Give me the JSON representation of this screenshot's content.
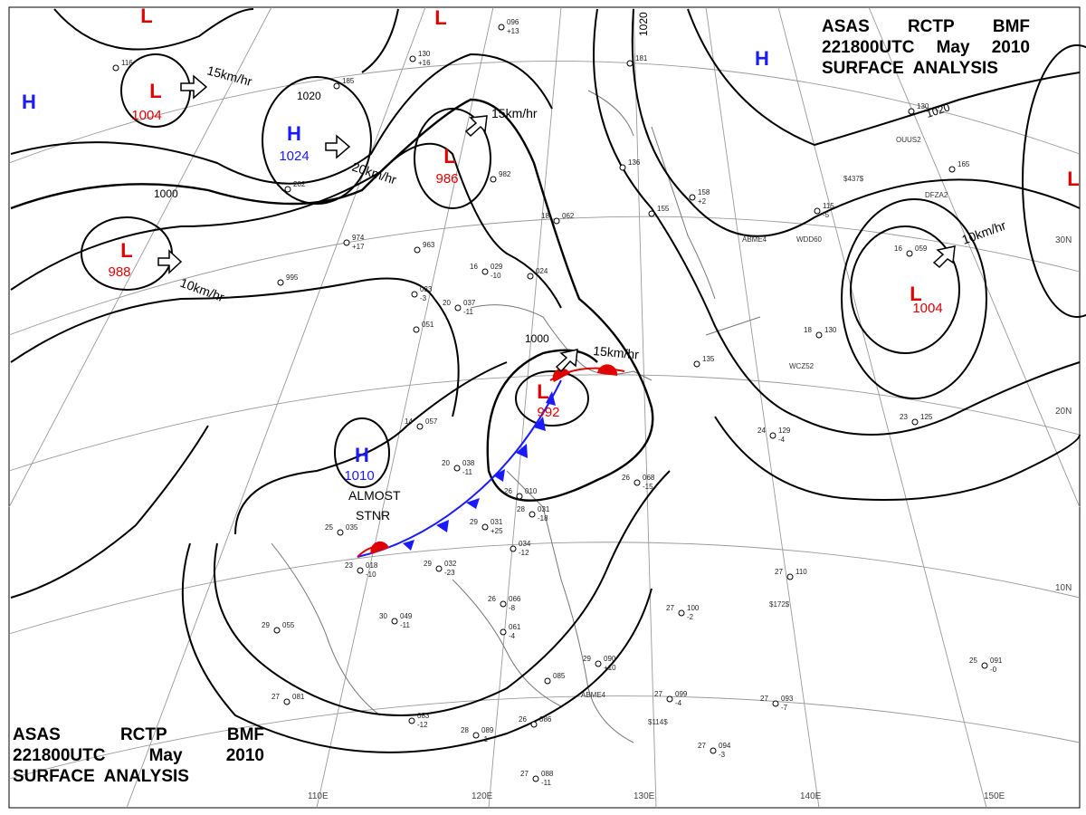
{
  "header_top": {
    "line1": [
      "ASAS",
      "RCTP",
      "BMF"
    ],
    "line2": [
      "221800UTC",
      "May",
      "2010"
    ],
    "line3": "SURFACE  ANALYSIS"
  },
  "header_bottom": {
    "line1": [
      "ASAS",
      "RCTP",
      "BMF"
    ],
    "line2": [
      "221800UTC",
      "May",
      "2010"
    ],
    "line3": "SURFACE  ANALYSIS"
  },
  "colors": {
    "high": "#1a1aff",
    "low": "#e00000",
    "isobar": "#000000",
    "grid": "#888888",
    "coast": "#666666",
    "cold_front": "#1a1aff",
    "warm_front": "#e00000"
  },
  "pressure_centers": [
    {
      "type": "H",
      "value": "1024"
    },
    {
      "type": "L",
      "value": "1004"
    },
    {
      "type": "L",
      "value": "988"
    },
    {
      "type": "L",
      "value": "986"
    },
    {
      "type": "H",
      "value": "1010"
    },
    {
      "type": "L",
      "value": "992"
    },
    {
      "type": "L",
      "value": "1004"
    },
    {
      "type": "H",
      "value": ""
    },
    {
      "type": "H",
      "value": ""
    },
    {
      "type": "L",
      "value": ""
    },
    {
      "type": "L",
      "value": ""
    },
    {
      "type": "L",
      "value": ""
    }
  ],
  "isobar_labels": [
    "1020",
    "1000",
    "1000",
    "1020",
    "1020"
  ],
  "motion_labels": [
    "15km/hr",
    "15km/hr",
    "20km/hr",
    "10km/hr",
    "15km/hr",
    "10km/hr"
  ],
  "front_label": [
    "ALMOST",
    "STNR"
  ],
  "longitude_labels": [
    "110E",
    "120E",
    "130E",
    "140E",
    "150E"
  ],
  "latitude_labels": [
    "30N",
    "20N",
    "10N"
  ],
  "station_plots": [
    {
      "t": "116",
      "p": "",
      "x": ""
    },
    {
      "t": "130",
      "p": "+16",
      "x": ""
    },
    {
      "t": "185",
      "p": "",
      "x": ""
    },
    {
      "t": "096",
      "p": "+13",
      "x": ""
    },
    {
      "t": "181",
      "p": "",
      "x": ""
    },
    {
      "t": "136",
      "p": "",
      "x": ""
    },
    {
      "t": "202",
      "p": "",
      "x": ""
    },
    {
      "t": "982",
      "p": "",
      "x": ""
    },
    {
      "t": "974",
      "p": "+17",
      "x": ""
    },
    {
      "t": "963",
      "p": "",
      "x": ""
    },
    {
      "t": "995",
      "p": "",
      "x": ""
    },
    {
      "t": "029",
      "p": "-10",
      "x": "16"
    },
    {
      "t": "024",
      "p": "",
      "x": ""
    },
    {
      "t": "033",
      "p": "-3",
      "x": ""
    },
    {
      "t": "037",
      "p": "-11",
      "x": "20"
    },
    {
      "t": "051",
      "p": "",
      "x": ""
    },
    {
      "t": "057",
      "p": "",
      "x": "14"
    },
    {
      "t": "038",
      "p": "-11",
      "x": "20"
    },
    {
      "t": "035",
      "p": "",
      "x": "25"
    },
    {
      "t": "018",
      "p": "-10",
      "x": "23"
    },
    {
      "t": "032",
      "p": "-23",
      "x": "29"
    },
    {
      "t": "031",
      "p": "+25",
      "x": "29"
    },
    {
      "t": "034",
      "p": "-12",
      "x": ""
    },
    {
      "t": "010",
      "p": "",
      "x": "26"
    },
    {
      "t": "031",
      "p": "-18",
      "x": "28"
    },
    {
      "t": "068",
      "p": "-15",
      "x": "26"
    },
    {
      "t": "049",
      "p": "-11",
      "x": "30"
    },
    {
      "t": "055",
      "p": "",
      "x": "29"
    },
    {
      "t": "081",
      "p": "",
      "x": "27"
    },
    {
      "t": "066",
      "p": "-8",
      "x": "26"
    },
    {
      "t": "061",
      "p": "-4",
      "x": ""
    },
    {
      "t": "090",
      "p": "+10",
      "x": "29"
    },
    {
      "t": "085",
      "p": "",
      "x": ""
    },
    {
      "t": "099",
      "p": "-4",
      "x": "27"
    },
    {
      "t": "083",
      "p": "-12",
      "x": ""
    },
    {
      "t": "089",
      "p": "-1",
      "x": "28"
    },
    {
      "t": "086",
      "p": "",
      "x": "26"
    },
    {
      "t": "088",
      "p": "-11",
      "x": "27"
    },
    {
      "t": "093",
      "p": "-7",
      "x": "27"
    },
    {
      "t": "094",
      "p": "-3",
      "x": "27"
    },
    {
      "t": "110",
      "p": "",
      "x": "27"
    },
    {
      "t": "100",
      "p": "-2",
      "x": "27"
    },
    {
      "t": "091",
      "p": "-0",
      "x": "25"
    },
    {
      "t": "129",
      "p": "-4",
      "x": "24"
    },
    {
      "t": "125",
      "p": "",
      "x": "23"
    },
    {
      "t": "130",
      "p": "",
      "x": "18"
    },
    {
      "t": "135",
      "p": "",
      "x": ""
    },
    {
      "t": "155",
      "p": "",
      "x": ""
    },
    {
      "t": "158",
      "p": "+2",
      "x": ""
    },
    {
      "t": "165",
      "p": "",
      "x": ""
    },
    {
      "t": "115",
      "p": "-5",
      "x": ""
    },
    {
      "t": "130",
      "p": "",
      "x": ""
    },
    {
      "t": "062",
      "p": "",
      "x": "18"
    },
    {
      "t": "059",
      "p": "",
      "x": "16"
    }
  ],
  "ship_callsigns": [
    "ABME4",
    "WDD60",
    "WCZ52",
    "DFZA2",
    "OUUS2",
    "ABME4",
    "$437$",
    "$114$",
    "$172$"
  ]
}
